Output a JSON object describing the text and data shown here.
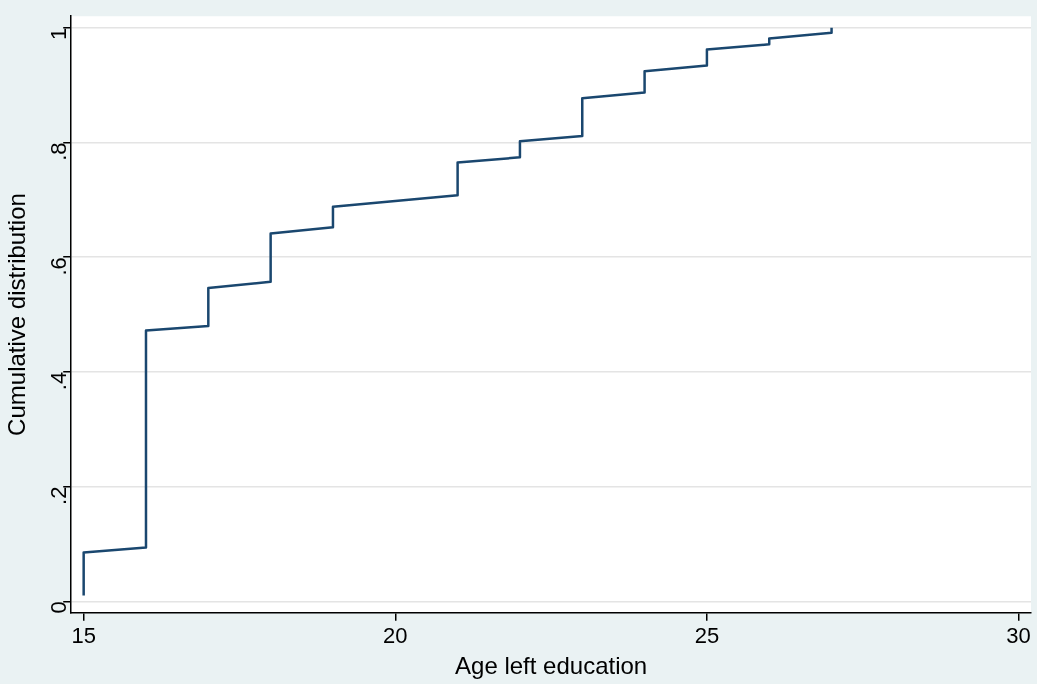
{
  "chart_data": {
    "type": "line",
    "xlabel": "Age left education",
    "ylabel": "Cumulative distribution",
    "x": [
      15,
      15,
      16,
      16,
      17,
      17,
      18,
      18,
      19,
      19,
      21,
      21,
      22,
      22,
      23,
      23,
      24,
      24,
      25,
      25,
      26,
      26,
      27,
      27
    ],
    "values": [
      0.01,
      0.085,
      0.094,
      0.472,
      0.48,
      0.546,
      0.557,
      0.641,
      0.652,
      0.688,
      0.708,
      0.765,
      0.774,
      0.802,
      0.811,
      0.877,
      0.887,
      0.924,
      0.934,
      0.962,
      0.971,
      0.981,
      0.991,
      1.0
    ],
    "color": "#1a476f",
    "marker": "none",
    "line_style": "solid",
    "grid": "y",
    "legend": false,
    "xlim": [
      14.8,
      30.2
    ],
    "xticks": [
      15,
      20,
      25,
      30
    ],
    "ylim": [
      -0.02,
      1.02
    ],
    "yticks": [
      0,
      {
        "value": 0.2,
        "label": ".2"
      },
      {
        "value": 0.4,
        "label": ".4"
      },
      {
        "value": 0.6,
        "label": ".6"
      },
      {
        "value": 0.8,
        "label": ".8"
      },
      1
    ]
  }
}
